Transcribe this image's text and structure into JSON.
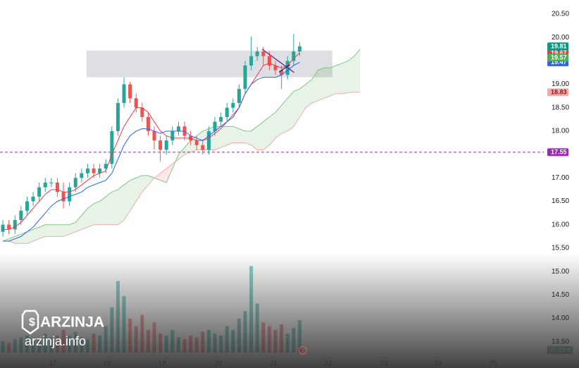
{
  "chart_data": {
    "type": "candlestick",
    "xlim": [
      -0.47,
      89.3
    ],
    "ylim": [
      12.94,
      20.8
    ],
    "grid": false,
    "yticks": [
      {
        "value": 20.5,
        "label": "20.50"
      },
      {
        "value": 20,
        "label": "20.00"
      },
      {
        "value": 19,
        "label": "19.00"
      },
      {
        "value": 18.5,
        "label": "18.50"
      },
      {
        "value": 18,
        "label": "18.00"
      },
      {
        "value": 17,
        "label": "17.00"
      },
      {
        "value": 16.5,
        "label": "16.50"
      },
      {
        "value": 16,
        "label": "16.00"
      },
      {
        "value": 15.5,
        "label": "15.50"
      },
      {
        "value": 15,
        "label": "15.00"
      },
      {
        "value": 14.5,
        "label": "14.50"
      },
      {
        "value": 14,
        "label": "14.00"
      },
      {
        "value": 13.5,
        "label": "13.50"
      }
    ],
    "xticks": [
      {
        "value": 8.26,
        "label": "17"
      },
      {
        "value": 17.2,
        "label": "18"
      },
      {
        "value": 26.3,
        "label": "19"
      },
      {
        "value": 35.6,
        "label": "20"
      },
      {
        "value": 44.7,
        "label": "21"
      },
      {
        "value": 53.7,
        "label": "22"
      },
      {
        "value": 62.9,
        "label": "23"
      },
      {
        "value": 71.9,
        "label": "24"
      },
      {
        "value": 80.9,
        "label": "25"
      }
    ],
    "candles": {
      "up_color": "#26a69a",
      "down_color": "#ef5350",
      "open": [
        15.85,
        16.0,
        15.9,
        16.1,
        16.3,
        16.5,
        16.6,
        16.8,
        16.9,
        16.9,
        16.7,
        16.5,
        16.8,
        17.0,
        17.1,
        17.2,
        17.1,
        17.2,
        17.3,
        18.0,
        18.6,
        19.0,
        18.7,
        18.5,
        18.3,
        18.0,
        17.8,
        17.6,
        17.8,
        18.0,
        18.1,
        17.9,
        17.8,
        17.7,
        17.6,
        18.0,
        18.2,
        18.3,
        18.5,
        18.6,
        18.9,
        19.4,
        19.6,
        19.7,
        19.6,
        19.4,
        19.3,
        19.2,
        19.5,
        19.7
      ],
      "high": [
        16.1,
        16.1,
        16.2,
        16.4,
        16.6,
        16.7,
        16.9,
        17.0,
        17.0,
        17.0,
        16.9,
        16.9,
        17.1,
        17.2,
        17.3,
        17.3,
        17.3,
        17.4,
        18.1,
        18.7,
        19.15,
        19.05,
        18.8,
        18.6,
        18.4,
        18.1,
        17.9,
        17.9,
        18.1,
        18.2,
        18.2,
        18.0,
        17.9,
        17.8,
        18.1,
        18.3,
        18.4,
        18.6,
        18.7,
        19.0,
        19.5,
        20.02,
        19.8,
        19.8,
        19.7,
        19.5,
        19.4,
        19.6,
        20.08,
        19.9
      ],
      "low": [
        15.75,
        15.8,
        15.8,
        16.0,
        16.2,
        16.4,
        16.5,
        16.7,
        16.8,
        16.6,
        16.35,
        16.4,
        16.7,
        16.9,
        17.0,
        17.0,
        17.0,
        17.1,
        17.2,
        17.9,
        18.5,
        18.6,
        18.4,
        18.2,
        17.9,
        17.6,
        17.35,
        17.5,
        17.7,
        17.9,
        17.8,
        17.7,
        17.6,
        17.5,
        17.5,
        17.9,
        18.1,
        18.2,
        18.4,
        18.5,
        18.8,
        19.3,
        19.5,
        19.4,
        19.3,
        19.2,
        18.9,
        19.1,
        19.4,
        19.6
      ],
      "close": [
        16.0,
        15.9,
        16.1,
        16.3,
        16.5,
        16.6,
        16.8,
        16.9,
        16.9,
        16.7,
        16.5,
        16.8,
        17.0,
        17.1,
        17.2,
        17.1,
        17.2,
        17.3,
        18.0,
        18.6,
        19.0,
        18.7,
        18.5,
        18.3,
        18.0,
        17.8,
        17.6,
        17.8,
        18.0,
        18.1,
        17.9,
        17.8,
        17.7,
        17.6,
        18.0,
        18.2,
        18.3,
        18.5,
        18.6,
        18.9,
        19.4,
        19.6,
        19.7,
        19.6,
        19.4,
        19.3,
        19.2,
        19.5,
        19.7,
        19.81
      ]
    },
    "volume": {
      "ylim": [
        0,
        300
      ],
      "values": [
        30,
        25,
        35,
        40,
        45,
        30,
        35,
        50,
        40,
        45,
        60,
        45,
        55,
        40,
        35,
        50,
        45,
        70,
        120,
        190,
        150,
        90,
        70,
        100,
        60,
        80,
        50,
        45,
        60,
        40,
        35,
        45,
        40,
        55,
        60,
        50,
        45,
        70,
        60,
        90,
        110,
        230,
        130,
        80,
        70,
        60,
        75,
        50,
        65,
        85.93
      ],
      "badge": {
        "value": 85.93,
        "label": "85.93 K"
      }
    },
    "conversion_line": {
      "color": "#f23645",
      "values": [
        15.9,
        15.9,
        15.95,
        16.05,
        16.2,
        16.35,
        16.5,
        16.65,
        16.75,
        16.75,
        16.7,
        16.7,
        16.75,
        16.85,
        16.95,
        17.05,
        17.1,
        17.15,
        17.5,
        17.8,
        18.1,
        18.3,
        18.5,
        18.5,
        18.4,
        18.2,
        18.0,
        17.9,
        17.85,
        17.85,
        17.85,
        17.85,
        17.8,
        17.8,
        17.85,
        17.95,
        18.05,
        18.2,
        18.35,
        18.5,
        18.8,
        19.0,
        19.2,
        19.4,
        19.45,
        19.4,
        19.35,
        19.4,
        19.55,
        19.67
      ]
    },
    "base_line": {
      "color": "#2962ff",
      "values": [
        15.65,
        15.65,
        15.7,
        15.75,
        15.85,
        15.95,
        16.1,
        16.25,
        16.4,
        16.5,
        16.55,
        16.6,
        16.65,
        16.7,
        16.8,
        16.85,
        16.9,
        16.95,
        17.1,
        17.4,
        17.7,
        17.9,
        18.0,
        18.05,
        18.05,
        18.0,
        17.95,
        18.0,
        18.0,
        18.0,
        18.0,
        17.9,
        17.85,
        17.8,
        17.9,
        18.0,
        18.1,
        18.2,
        18.3,
        18.5,
        18.8,
        19.0,
        19.1,
        19.15,
        19.15,
        19.15,
        19.2,
        19.3,
        19.4,
        19.47
      ]
    },
    "span_a": {
      "color": "#81c784",
      "fill": "rgba(67,160,71,0.13)",
      "values": [
        15.65,
        15.7,
        15.75,
        15.8,
        15.85,
        15.9,
        15.95,
        16.0,
        16.0,
        16.0,
        16.0,
        16.0,
        16.05,
        16.2,
        16.35,
        16.45,
        16.5,
        16.6,
        16.7,
        16.75,
        16.85,
        16.95,
        17.0,
        17.05,
        17.05,
        17.0,
        16.95,
        16.9,
        17.2,
        17.5,
        17.65,
        17.8,
        17.9,
        18.0,
        18.05,
        18.1,
        18.1,
        18.1,
        18.1,
        18.05,
        18.0,
        18.0,
        18.1,
        18.2,
        18.3,
        18.4,
        18.55,
        18.7,
        18.85,
        18.9,
        19.0,
        19.1,
        19.3,
        19.35,
        19.35,
        19.4,
        19.45,
        19.5,
        19.6,
        19.75
      ]
    },
    "span_b": {
      "color": "#f7a9a7",
      "fill": "rgba(244,67,54,0.13)",
      "values": [
        15.65,
        15.65,
        15.6,
        15.6,
        15.6,
        15.65,
        15.7,
        15.75,
        15.75,
        15.75,
        15.75,
        15.8,
        15.85,
        15.9,
        15.95,
        16.0,
        16.0,
        16.0,
        16.0,
        16.0,
        16.1,
        16.3,
        16.5,
        16.7,
        16.85,
        17.0,
        17.1,
        17.2,
        17.3,
        17.4,
        17.5,
        17.55,
        17.6,
        17.6,
        17.6,
        17.6,
        17.65,
        17.7,
        17.75,
        17.75,
        17.75,
        17.7,
        17.6,
        17.6,
        17.7,
        17.85,
        17.95,
        18.0,
        18.1,
        18.3,
        18.5,
        18.6,
        18.65,
        18.7,
        18.75,
        18.8,
        18.8,
        18.82,
        18.83,
        18.83
      ]
    },
    "zone": {
      "x": [
        13.8,
        54.4
      ],
      "y": [
        19.15,
        19.72
      ],
      "color": "rgba(180,184,190,0.45)"
    },
    "drawings": [
      {
        "x": [
          42.8,
          48.1
        ],
        "y": [
          19.75,
          19.25
        ],
        "color": "#7b1fa2"
      },
      {
        "x": [
          45.6,
          47.4
        ],
        "y": [
          19.26,
          19.42
        ],
        "color": "#1a237e"
      }
    ],
    "hline": {
      "value": 17.55,
      "color": "#9c27b0"
    },
    "badges": [
      {
        "value": 19.47,
        "color": "#2962ff",
        "text_color": "#ffffff"
      },
      {
        "value": 19.67,
        "color": "#f23645",
        "text_color": "#ffffff"
      },
      {
        "value": 19.57,
        "color": "#4caf50",
        "text_color": "#ffffff"
      },
      {
        "value": 19.81,
        "color": "#089981",
        "text_color": "#ffffff"
      },
      {
        "value": 18.83,
        "color": "#f7a9a7",
        "text_color": "#7a1f1f"
      },
      {
        "value": 17.55,
        "color": "#9c27b0",
        "text_color": "#ffffff"
      }
    ]
  },
  "watermark": {
    "brand": "ARZINJA",
    "site": "arzinja.info"
  }
}
